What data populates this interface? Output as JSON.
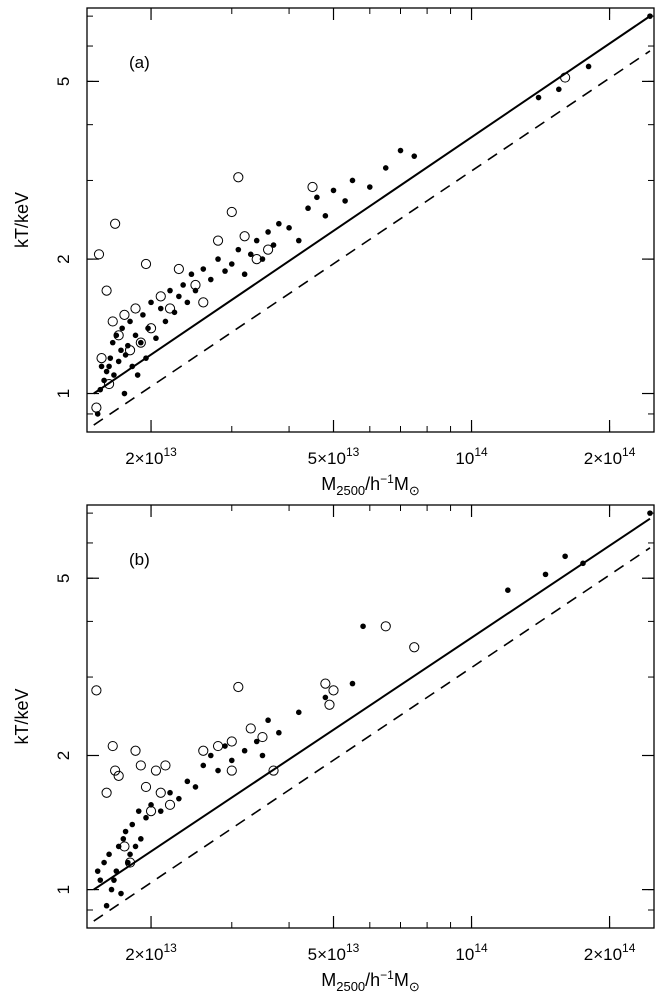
{
  "chart_data": [
    {
      "type": "scatter",
      "panel_label": "(a)",
      "xlabel": "M2500/h−1M⊙",
      "ylabel": "kT/keV",
      "x_scale": "log",
      "y_scale": "log",
      "xlim": [
        14500000000000.0,
        250000000000000.0
      ],
      "ylim": [
        0.82,
        7.3
      ],
      "x_tick_labels": [
        {
          "value": 20000000000000.0,
          "mantissa": "2×",
          "base": "10",
          "exp": "13"
        },
        {
          "value": 50000000000000.0,
          "mantissa": "5×",
          "base": "10",
          "exp": "13"
        },
        {
          "value": 100000000000000.0,
          "mantissa": "",
          "base": "10",
          "exp": "14"
        },
        {
          "value": 200000000000000.0,
          "mantissa": "2×",
          "base": "10",
          "exp": "14"
        }
      ],
      "y_tick_labels": [
        {
          "value": 1,
          "label": "1"
        },
        {
          "value": 2,
          "label": "2"
        },
        {
          "value": 5,
          "label": "5"
        }
      ],
      "series": [
        {
          "marker": "filled",
          "points": [
            [
              15300000000000.0,
              0.9
            ],
            [
              15500000000000.0,
              1.02
            ],
            [
              15600000000000.0,
              1.15
            ],
            [
              15800000000000.0,
              1.07
            ],
            [
              16000000000000.0,
              1.12
            ],
            [
              16200000000000.0,
              1.15
            ],
            [
              16300000000000.0,
              1.2
            ],
            [
              16500000000000.0,
              1.3
            ],
            [
              16600000000000.0,
              1.1
            ],
            [
              16800000000000.0,
              1.35
            ],
            [
              17000000000000.0,
              1.18
            ],
            [
              17200000000000.0,
              1.25
            ],
            [
              17300000000000.0,
              1.4
            ],
            [
              17500000000000.0,
              1.0
            ],
            [
              17600000000000.0,
              1.22
            ],
            [
              17800000000000.0,
              1.28
            ],
            [
              18000000000000.0,
              1.45
            ],
            [
              18200000000000.0,
              1.15
            ],
            [
              18500000000000.0,
              1.35
            ],
            [
              18700000000000.0,
              1.1
            ],
            [
              19000000000000.0,
              1.3
            ],
            [
              19200000000000.0,
              1.5
            ],
            [
              19500000000000.0,
              1.2
            ],
            [
              19700000000000.0,
              1.4
            ],
            [
              20000000000000.0,
              1.6
            ],
            [
              20500000000000.0,
              1.33
            ],
            [
              21000000000000.0,
              1.55
            ],
            [
              21500000000000.0,
              1.45
            ],
            [
              22000000000000.0,
              1.7
            ],
            [
              22500000000000.0,
              1.52
            ],
            [
              23000000000000.0,
              1.65
            ],
            [
              23500000000000.0,
              1.75
            ],
            [
              24000000000000.0,
              1.6
            ],
            [
              24500000000000.0,
              1.85
            ],
            [
              25000000000000.0,
              1.7
            ],
            [
              26000000000000.0,
              1.9
            ],
            [
              27000000000000.0,
              1.8
            ],
            [
              28000000000000.0,
              2.0
            ],
            [
              29000000000000.0,
              1.88
            ],
            [
              30000000000000.0,
              1.95
            ],
            [
              31000000000000.0,
              2.1
            ],
            [
              32000000000000.0,
              1.85
            ],
            [
              33000000000000.0,
              2.05
            ],
            [
              34000000000000.0,
              2.2
            ],
            [
              35000000000000.0,
              2.0
            ],
            [
              36000000000000.0,
              2.3
            ],
            [
              37000000000000.0,
              2.15
            ],
            [
              38000000000000.0,
              2.4
            ],
            [
              40000000000000.0,
              2.35
            ],
            [
              42000000000000.0,
              2.2
            ],
            [
              44000000000000.0,
              2.6
            ],
            [
              46000000000000.0,
              2.75
            ],
            [
              48000000000000.0,
              2.5
            ],
            [
              50000000000000.0,
              2.85
            ],
            [
              53000000000000.0,
              2.7
            ],
            [
              55000000000000.0,
              3.0
            ],
            [
              60000000000000.0,
              2.9
            ],
            [
              65000000000000.0,
              3.2
            ],
            [
              70000000000000.0,
              3.5
            ],
            [
              75000000000000.0,
              3.4
            ],
            [
              140000000000000.0,
              4.6
            ],
            [
              155000000000000.0,
              4.8
            ],
            [
              180000000000000.0,
              5.4
            ],
            [
              245000000000000.0,
              7.0
            ]
          ]
        },
        {
          "marker": "open",
          "points": [
            [
              15200000000000.0,
              0.93
            ],
            [
              15400000000000.0,
              2.05
            ],
            [
              15600000000000.0,
              1.2
            ],
            [
              16000000000000.0,
              1.7
            ],
            [
              16200000000000.0,
              1.05
            ],
            [
              16500000000000.0,
              1.45
            ],
            [
              16700000000000.0,
              2.4
            ],
            [
              17000000000000.0,
              1.35
            ],
            [
              17500000000000.0,
              1.5
            ],
            [
              18000000000000.0,
              1.25
            ],
            [
              18500000000000.0,
              1.55
            ],
            [
              19000000000000.0,
              1.3
            ],
            [
              19500000000000.0,
              1.95
            ],
            [
              20000000000000.0,
              1.4
            ],
            [
              21000000000000.0,
              1.65
            ],
            [
              22000000000000.0,
              1.55
            ],
            [
              23000000000000.0,
              1.9
            ],
            [
              25000000000000.0,
              1.75
            ],
            [
              26000000000000.0,
              1.6
            ],
            [
              28000000000000.0,
              2.2
            ],
            [
              30000000000000.0,
              2.55
            ],
            [
              31000000000000.0,
              3.05
            ],
            [
              32000000000000.0,
              2.25
            ],
            [
              34000000000000.0,
              2.0
            ],
            [
              36000000000000.0,
              2.1
            ],
            [
              45000000000000.0,
              2.9
            ],
            [
              160000000000000.0,
              5.1
            ]
          ]
        },
        {
          "marker": "solid-line",
          "points": [
            [
              15000000000000.0,
              1.0
            ],
            [
              245000000000000.0,
              7.0
            ]
          ]
        },
        {
          "marker": "dashed-line",
          "points": [
            [
              15000000000000.0,
              0.85
            ],
            [
              245000000000000.0,
              5.85
            ]
          ]
        }
      ]
    },
    {
      "type": "scatter",
      "panel_label": "(b)",
      "xlabel": "M2500/h−1M⊙",
      "ylabel": "kT/keV",
      "x_scale": "log",
      "y_scale": "log",
      "xlim": [
        14500000000000.0,
        250000000000000.0
      ],
      "ylim": [
        0.82,
        7.3
      ],
      "x_tick_labels": [
        {
          "value": 20000000000000.0,
          "mantissa": "2×",
          "base": "10",
          "exp": "13"
        },
        {
          "value": 50000000000000.0,
          "mantissa": "5×",
          "base": "10",
          "exp": "13"
        },
        {
          "value": 100000000000000.0,
          "mantissa": "",
          "base": "10",
          "exp": "14"
        },
        {
          "value": 200000000000000.0,
          "mantissa": "2×",
          "base": "10",
          "exp": "14"
        }
      ],
      "y_tick_labels": [
        {
          "value": 1,
          "label": "1"
        },
        {
          "value": 2,
          "label": "2"
        },
        {
          "value": 5,
          "label": "5"
        }
      ],
      "series": [
        {
          "marker": "filled",
          "points": [
            [
              15300000000000.0,
              1.1
            ],
            [
              15500000000000.0,
              1.05
            ],
            [
              15800000000000.0,
              1.15
            ],
            [
              16000000000000.0,
              0.92
            ],
            [
              16200000000000.0,
              1.2
            ],
            [
              16400000000000.0,
              1.0
            ],
            [
              16600000000000.0,
              1.05
            ],
            [
              16800000000000.0,
              1.1
            ],
            [
              17000000000000.0,
              1.25
            ],
            [
              17200000000000.0,
              0.98
            ],
            [
              17400000000000.0,
              1.3
            ],
            [
              17600000000000.0,
              1.35
            ],
            [
              17800000000000.0,
              1.15
            ],
            [
              18000000000000.0,
              1.2
            ],
            [
              18200000000000.0,
              1.4
            ],
            [
              18500000000000.0,
              1.25
            ],
            [
              18800000000000.0,
              1.5
            ],
            [
              19000000000000.0,
              1.3
            ],
            [
              19500000000000.0,
              1.45
            ],
            [
              20000000000000.0,
              1.55
            ],
            [
              21000000000000.0,
              1.5
            ],
            [
              22000000000000.0,
              1.65
            ],
            [
              23000000000000.0,
              1.6
            ],
            [
              24000000000000.0,
              1.75
            ],
            [
              25000000000000.0,
              1.7
            ],
            [
              26000000000000.0,
              1.9
            ],
            [
              27000000000000.0,
              2.0
            ],
            [
              28000000000000.0,
              1.85
            ],
            [
              29000000000000.0,
              2.1
            ],
            [
              30000000000000.0,
              1.95
            ],
            [
              32000000000000.0,
              2.05
            ],
            [
              34000000000000.0,
              2.15
            ],
            [
              35000000000000.0,
              2.0
            ],
            [
              36000000000000.0,
              2.4
            ],
            [
              38000000000000.0,
              2.25
            ],
            [
              42000000000000.0,
              2.5
            ],
            [
              48000000000000.0,
              2.7
            ],
            [
              55000000000000.0,
              2.9
            ],
            [
              58000000000000.0,
              3.9
            ],
            [
              120000000000000.0,
              4.7
            ],
            [
              145000000000000.0,
              5.1
            ],
            [
              160000000000000.0,
              5.6
            ],
            [
              175000000000000.0,
              5.4
            ],
            [
              245000000000000.0,
              7.0
            ]
          ]
        },
        {
          "marker": "open",
          "points": [
            [
              15200000000000.0,
              2.8
            ],
            [
              16000000000000.0,
              1.65
            ],
            [
              16500000000000.0,
              2.1
            ],
            [
              16700000000000.0,
              1.85
            ],
            [
              17000000000000.0,
              1.8
            ],
            [
              17500000000000.0,
              1.25
            ],
            [
              18000000000000.0,
              1.15
            ],
            [
              18500000000000.0,
              2.05
            ],
            [
              19000000000000.0,
              1.9
            ],
            [
              19500000000000.0,
              1.7
            ],
            [
              20000000000000.0,
              1.5
            ],
            [
              20500000000000.0,
              1.85
            ],
            [
              21000000000000.0,
              1.65
            ],
            [
              21500000000000.0,
              1.9
            ],
            [
              22000000000000.0,
              1.55
            ],
            [
              26000000000000.0,
              2.05
            ],
            [
              28000000000000.0,
              2.1
            ],
            [
              30000000000000.0,
              2.15
            ],
            [
              30000000000000.0,
              1.85
            ],
            [
              31000000000000.0,
              2.85
            ],
            [
              33000000000000.0,
              2.3
            ],
            [
              35000000000000.0,
              2.2
            ],
            [
              37000000000000.0,
              1.85
            ],
            [
              48000000000000.0,
              2.9
            ],
            [
              49000000000000.0,
              2.6
            ],
            [
              50000000000000.0,
              2.8
            ],
            [
              65000000000000.0,
              3.9
            ],
            [
              75000000000000.0,
              3.5
            ]
          ]
        },
        {
          "marker": "solid-line",
          "points": [
            [
              15000000000000.0,
              1.0
            ],
            [
              245000000000000.0,
              6.8
            ]
          ]
        },
        {
          "marker": "dashed-line",
          "points": [
            [
              15000000000000.0,
              0.85
            ],
            [
              245000000000000.0,
              5.85
            ]
          ]
        }
      ]
    }
  ]
}
